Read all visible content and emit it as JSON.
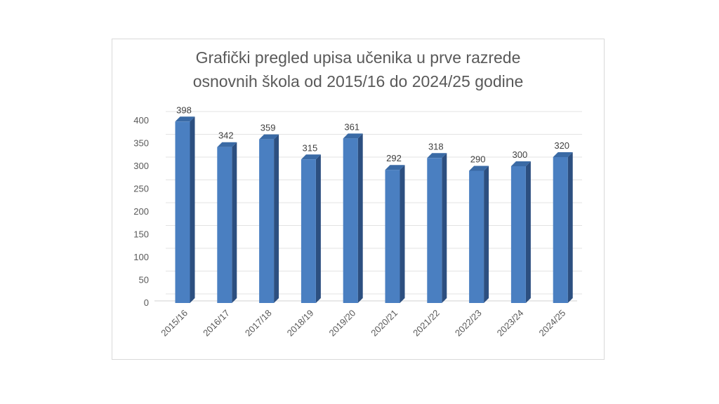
{
  "chart_data": {
    "type": "bar",
    "title_lines": [
      "Grafički pregled upisa učenika u prve razrede",
      "osnovnih škola od 2015/16 do 2024/25 godine"
    ],
    "categories": [
      "2015/16",
      "2016/17",
      "2017/18",
      "2018/19",
      "2019/20",
      "2020/21",
      "2021/22",
      "2022/23",
      "2023/24",
      "2024/25"
    ],
    "values": [
      398,
      342,
      359,
      315,
      361,
      292,
      318,
      290,
      300,
      320
    ],
    "ylim": [
      0,
      400
    ],
    "yticks": [
      "0",
      "50",
      "100",
      "150",
      "200",
      "250",
      "300",
      "350",
      "400"
    ],
    "grid": true,
    "legend": "none",
    "style": "3d-column",
    "colors": {
      "bar_front": "#4a7fc1",
      "bar_side": "#2c4f80",
      "bar_top": "#3a6aa5",
      "gridline": "#e3e3e3"
    }
  }
}
